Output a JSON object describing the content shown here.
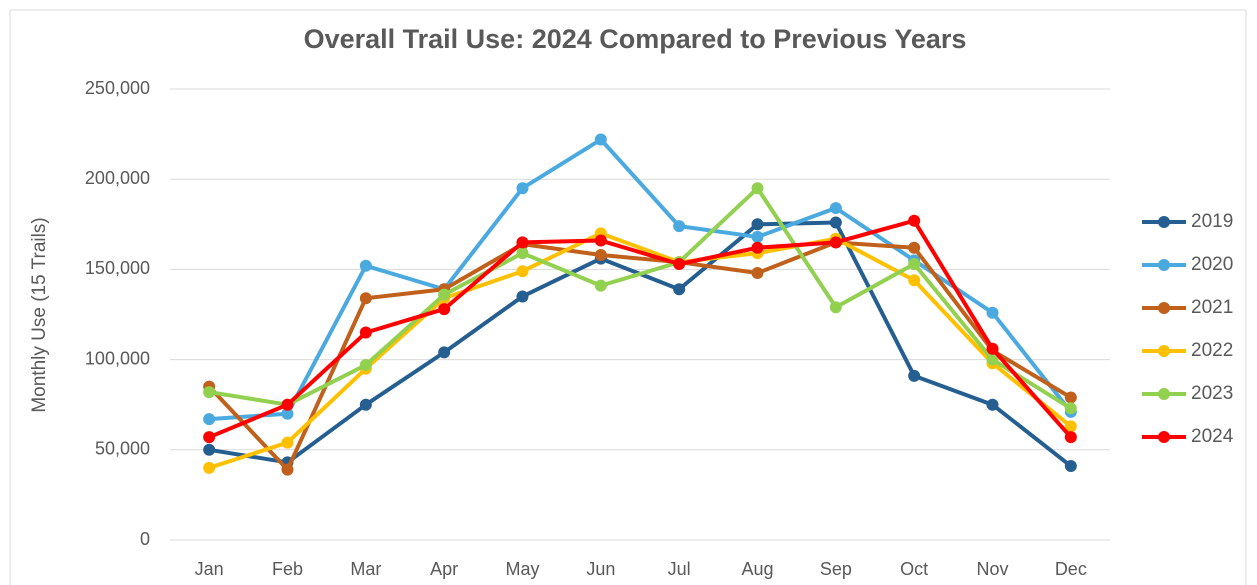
{
  "chart_data": {
    "type": "line",
    "title": "Overall Trail Use: 2024 Compared to Previous Years",
    "y_label": "Monthly Use (15 Trails)",
    "categories": [
      "Jan",
      "Feb",
      "Mar",
      "Apr",
      "May",
      "Jun",
      "Jul",
      "Aug",
      "Sep",
      "Oct",
      "Nov",
      "Dec"
    ],
    "series": [
      {
        "name": "2019",
        "color": "#255e91",
        "values": [
          50000,
          43000,
          75000,
          104000,
          135000,
          156000,
          139000,
          175000,
          176000,
          91000,
          75000,
          41000
        ]
      },
      {
        "name": "2020",
        "color": "#4aaae0",
        "values": [
          67000,
          70000,
          152000,
          139000,
          195000,
          222000,
          174000,
          168000,
          184000,
          155000,
          126000,
          71000
        ]
      },
      {
        "name": "2021",
        "color": "#c0601a",
        "values": [
          85000,
          39000,
          134000,
          139000,
          164000,
          158000,
          154000,
          148000,
          165000,
          162000,
          105000,
          79000
        ]
      },
      {
        "name": "2022",
        "color": "#ffc000",
        "values": [
          40000,
          54000,
          95000,
          134000,
          149000,
          170000,
          154000,
          159000,
          167000,
          144000,
          98000,
          63000
        ]
      },
      {
        "name": "2023",
        "color": "#92d050",
        "values": [
          82000,
          75000,
          97000,
          136000,
          159000,
          141000,
          154000,
          195000,
          129000,
          153000,
          100000,
          73000
        ]
      },
      {
        "name": "2024",
        "color": "#ff0000",
        "values": [
          57000,
          75000,
          115000,
          128000,
          165000,
          166000,
          153000,
          162000,
          165000,
          177000,
          106000,
          57000
        ]
      }
    ],
    "ylim": [
      0,
      250000
    ],
    "yticks": [
      0,
      {
        "value": 50000,
        "label": "50,000"
      },
      {
        "value": 100000,
        "label": "100,000"
      },
      {
        "value": 150000,
        "label": "150,000"
      },
      {
        "value": 200000,
        "label": "200,000"
      },
      {
        "value": 250000,
        "label": "250,000"
      }
    ],
    "grid": true,
    "legend": "right"
  }
}
